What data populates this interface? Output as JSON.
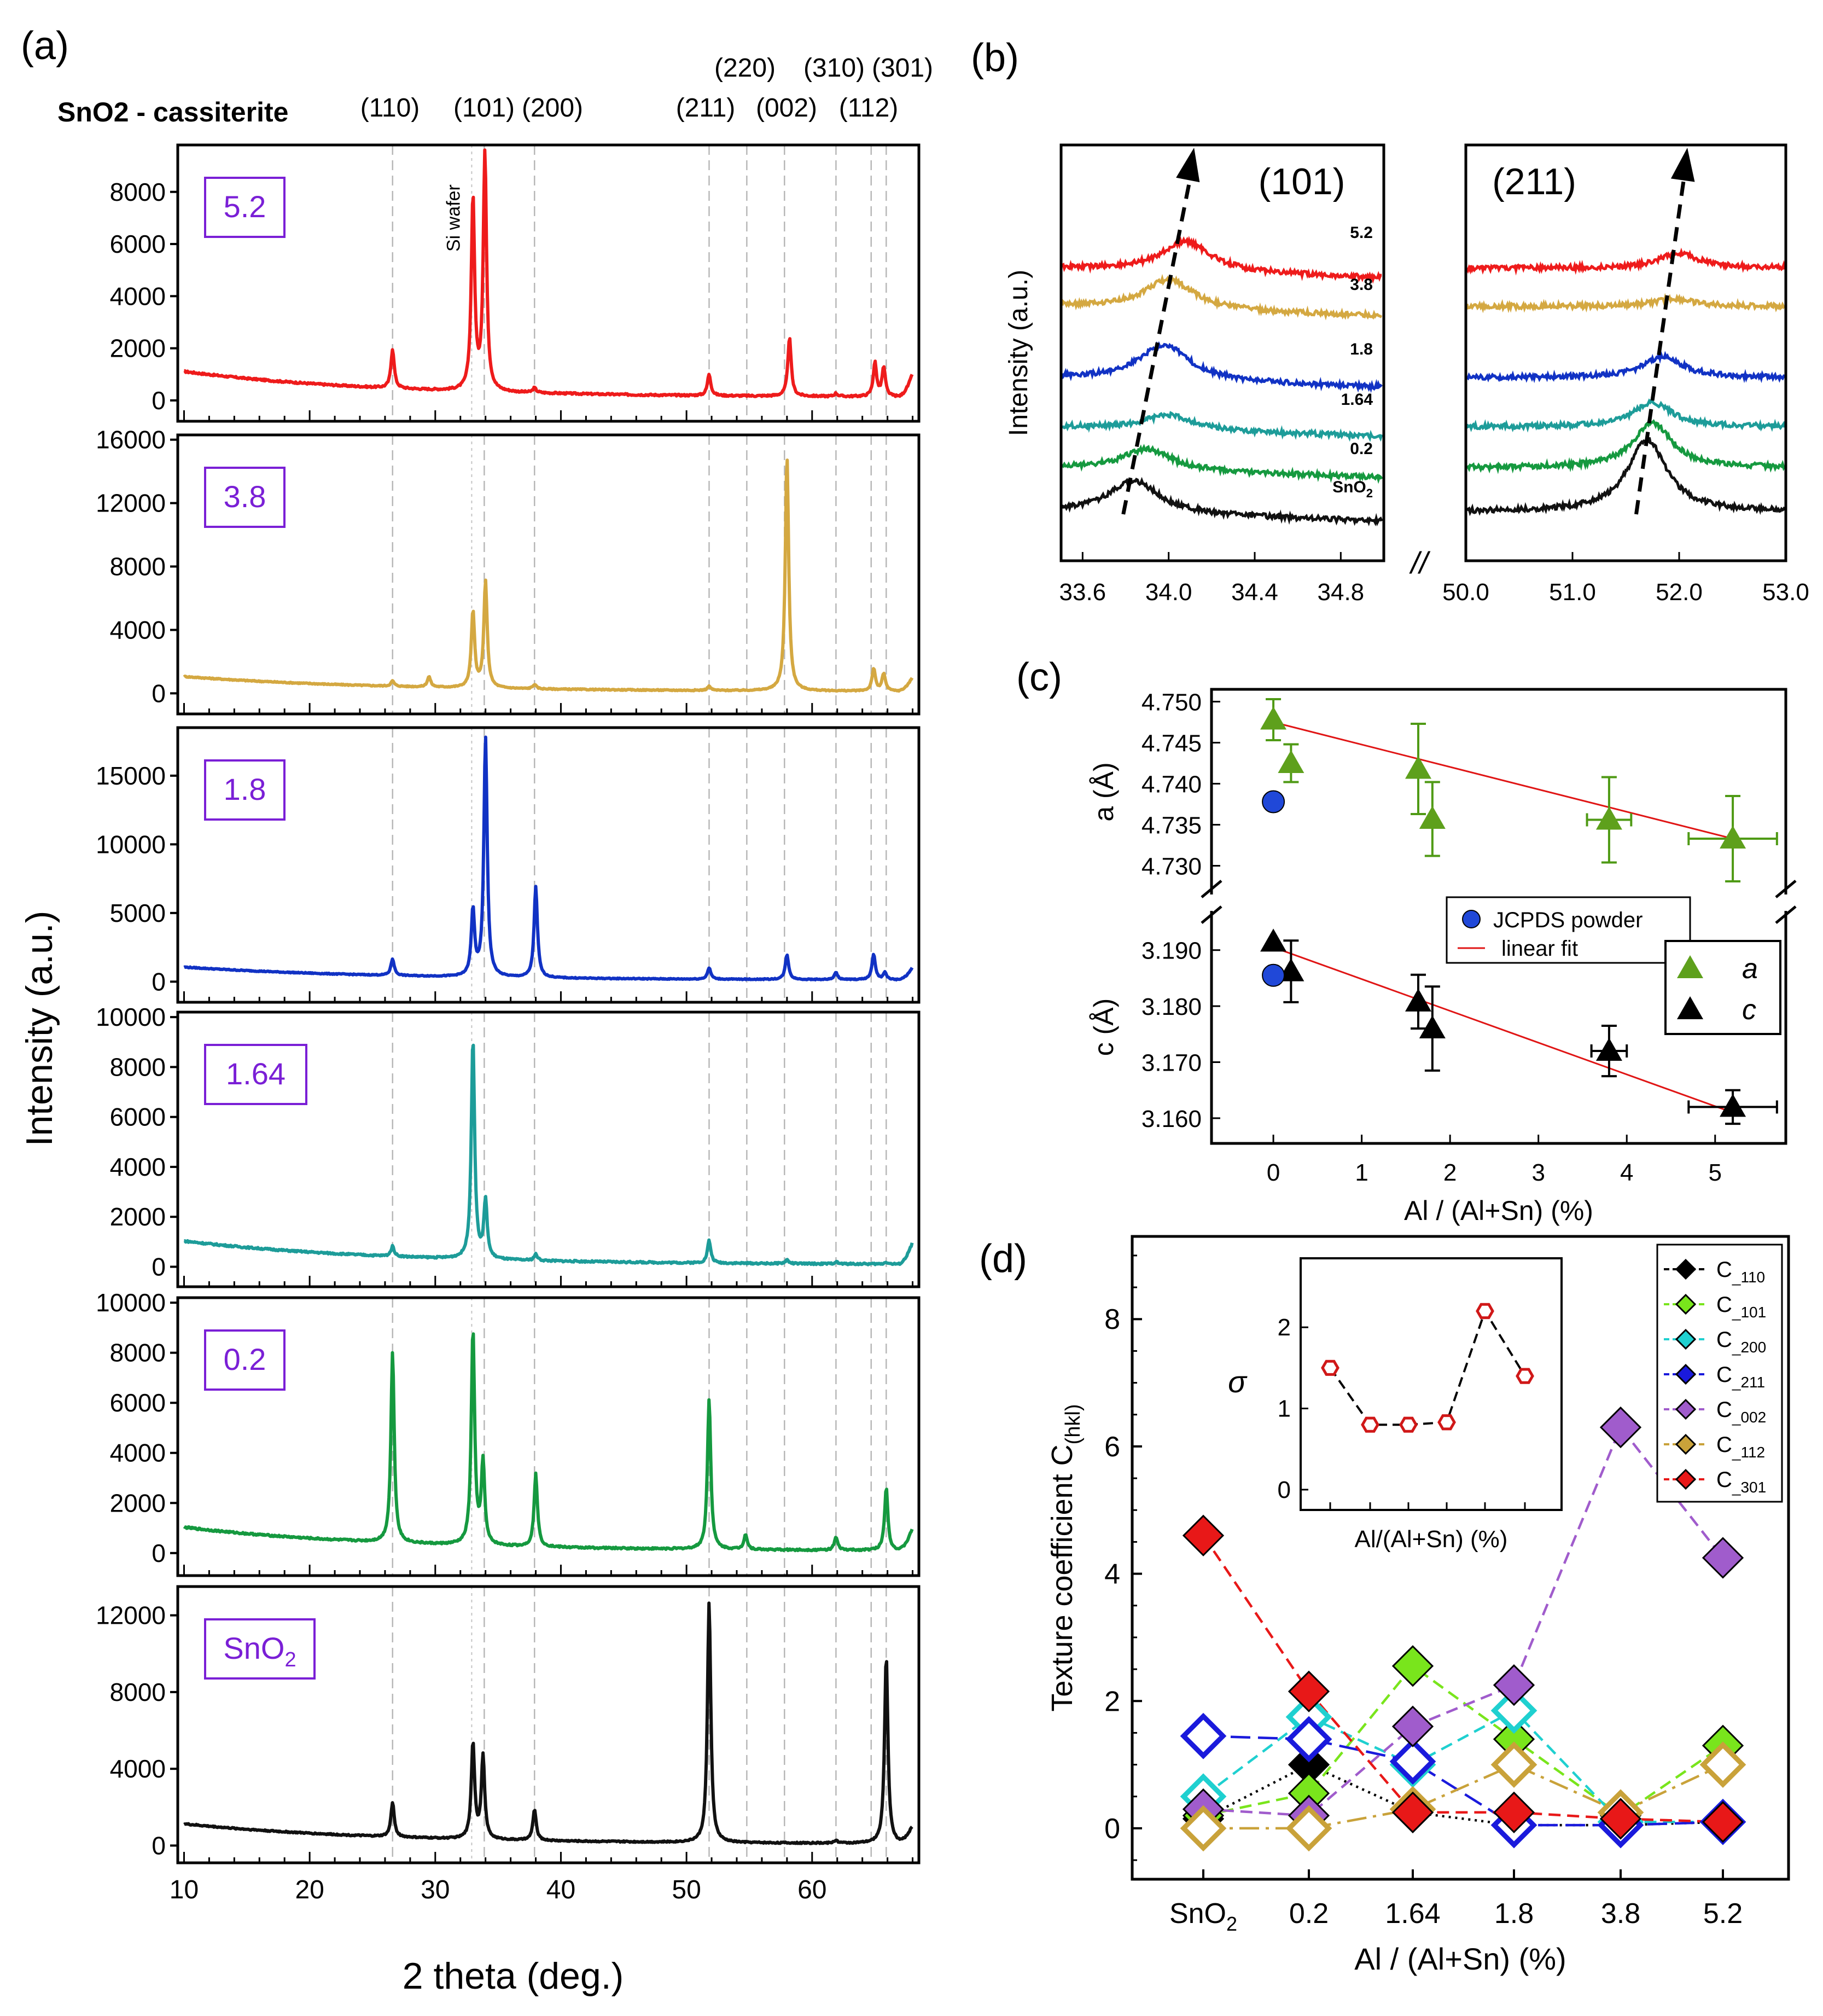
{
  "figure": {
    "panel_labels": [
      "(a)",
      "(b)",
      "(c)",
      "(d)"
    ]
  },
  "colors": {
    "5.2": "#ee1b1b",
    "3.8": "#d4a841",
    "1.8": "#1132c4",
    "1.64": "#1d9c99",
    "0.2": "#15993f",
    "SnO2": "#111111",
    "label": "#7a1fd6"
  },
  "chart_data": [
    {
      "id": "a",
      "type": "line",
      "title": "SnO2 - cassiterite",
      "xlabel": "2 theta  (deg.)",
      "ylabel": "Intensity  (a.u.)",
      "xlim": [
        9.5,
        68.5
      ],
      "xticks": [
        10,
        20,
        30,
        40,
        50,
        60
      ],
      "reflections": [
        {
          "hkl": "(110)",
          "x": 26.6
        },
        {
          "hkl": "(101)",
          "x": 33.9
        },
        {
          "hkl": "(200)",
          "x": 37.9
        },
        {
          "hkl": "(211)",
          "x": 51.8
        },
        {
          "hkl": "(220)",
          "x": 54.8
        },
        {
          "hkl": "(002)",
          "x": 57.8
        },
        {
          "hkl": "(310)",
          "x": 61.9
        },
        {
          "hkl": "(112)",
          "x": 64.7
        },
        {
          "hkl": "(301)",
          "x": 65.9
        }
      ],
      "si_wafer": {
        "label": "Si wafer",
        "x": 32.9
      },
      "series": [
        {
          "name": "5.2",
          "ylim": [
            -800,
            9800
          ],
          "yticks": [
            0,
            2000,
            4000,
            6000,
            8000
          ],
          "baseline": [
            1000,
            110
          ],
          "peaks": [
            [
              26.6,
              1500
            ],
            [
              33.0,
              7400
            ],
            [
              33.95,
              9100
            ],
            [
              37.9,
              180
            ],
            [
              51.8,
              830
            ],
            [
              58.2,
              2250
            ],
            [
              61.9,
              120
            ],
            [
              65.0,
              1300
            ],
            [
              65.7,
              1100
            ]
          ]
        },
        {
          "name": "3.8",
          "ylim": [
            -1300,
            16300
          ],
          "yticks": [
            0,
            4000,
            8000,
            12000,
            16000
          ],
          "baseline": [
            950,
            110
          ],
          "peaks": [
            [
              26.6,
              330
            ],
            [
              29.5,
              650
            ],
            [
              33.0,
              4800
            ],
            [
              34.0,
              6700
            ],
            [
              37.9,
              280
            ],
            [
              51.8,
              260
            ],
            [
              58.0,
              14800
            ],
            [
              64.9,
              1400
            ],
            [
              65.7,
              1100
            ]
          ]
        },
        {
          "name": "1.8",
          "ylim": [
            -1500,
            18500
          ],
          "yticks": [
            0,
            5000,
            10000,
            15000
          ],
          "baseline": [
            950,
            110
          ],
          "peaks": [
            [
              26.6,
              1200
            ],
            [
              33.0,
              4800
            ],
            [
              34.0,
              17400
            ],
            [
              38.0,
              6600
            ],
            [
              51.8,
              820
            ],
            [
              58.0,
              1800
            ],
            [
              61.9,
              500
            ],
            [
              64.9,
              1850
            ],
            [
              65.8,
              500
            ]
          ]
        },
        {
          "name": "1.64",
          "ylim": [
            -800,
            10200
          ],
          "yticks": [
            0,
            2000,
            4000,
            6000,
            8000,
            10000
          ],
          "baseline": [
            950,
            80
          ],
          "peaks": [
            [
              26.6,
              400
            ],
            [
              33.0,
              8800
            ],
            [
              34.0,
              2300
            ],
            [
              38.0,
              250
            ],
            [
              51.8,
              900
            ],
            [
              58.0,
              150
            ],
            [
              61.9,
              80
            ],
            [
              65.9,
              80
            ]
          ]
        },
        {
          "name": "0.2",
          "ylim": [
            -900,
            10200
          ],
          "yticks": [
            0,
            2000,
            4000,
            6000,
            8000,
            10000
          ],
          "baseline": [
            950,
            80
          ],
          "peaks": [
            [
              26.6,
              7600
            ],
            [
              33.0,
              8600
            ],
            [
              33.8,
              3300
            ],
            [
              38.0,
              2900
            ],
            [
              51.8,
              6000
            ],
            [
              54.7,
              600
            ],
            [
              61.9,
              500
            ],
            [
              65.9,
              2500
            ]
          ]
        },
        {
          "name": "SnO2",
          "ylim": [
            -900,
            13500
          ],
          "yticks": [
            0,
            4000,
            8000,
            12000
          ],
          "baseline": [
            1050,
            80
          ],
          "peaks": [
            [
              26.6,
              1800
            ],
            [
              33.0,
              5000
            ],
            [
              33.8,
              4300
            ],
            [
              37.9,
              1600
            ],
            [
              51.8,
              12500
            ],
            [
              61.9,
              150
            ],
            [
              65.9,
              9800
            ]
          ]
        }
      ]
    },
    {
      "id": "b",
      "type": "line",
      "ylabel": "Intensity (a.u.)",
      "left": {
        "peak_label": "(101)",
        "xlim": [
          33.5,
          35.0
        ],
        "xticks": [
          "33.6",
          "34.0",
          "34.4",
          "34.8"
        ]
      },
      "right": {
        "peak_label": "(211)",
        "xlim": [
          50.0,
          53.0
        ],
        "xticks": [
          "50.0",
          "51.0",
          "52.0",
          "53.0"
        ]
      },
      "break_mark": "//",
      "series": [
        {
          "name": "5.2",
          "offset": 5,
          "p101": [
            34.08,
            1.0
          ],
          "p211": [
            52.0,
            0.5
          ]
        },
        {
          "name": "3.8",
          "offset": 4,
          "p101": [
            34.0,
            1.0
          ],
          "p211": [
            51.95,
            0.25
          ]
        },
        {
          "name": "1.8",
          "offset": 3,
          "p101": [
            33.98,
            1.2
          ],
          "p211": [
            51.85,
            0.7
          ]
        },
        {
          "name": "1.64",
          "offset": 2,
          "p101": [
            34.0,
            0.5
          ],
          "p211": [
            51.75,
            0.8
          ]
        },
        {
          "name": "0.2",
          "offset": 1,
          "p101": [
            33.9,
            0.7
          ],
          "p211": [
            51.75,
            1.5
          ]
        },
        {
          "name": "SnO2",
          "offset": 0,
          "p101": [
            33.84,
            1.1
          ],
          "p211": [
            51.7,
            2.4
          ]
        }
      ]
    },
    {
      "id": "c",
      "type": "scatter",
      "xlabel": "Al / (Al+Sn)  (%)",
      "xlim": [
        -0.7,
        5.8
      ],
      "xticks": [
        0,
        1,
        2,
        3,
        4,
        5
      ],
      "top": {
        "ylabel": "a (Å)",
        "ylim": [
          4.7265,
          4.7515
        ],
        "yticks": [
          "4.730",
          "4.735",
          "4.740",
          "4.745",
          "4.750"
        ]
      },
      "bottom": {
        "ylabel": "c (Å)",
        "ylim": [
          3.1555,
          3.197
        ],
        "yticks": [
          "3.160",
          "3.170",
          "3.180",
          "3.190"
        ]
      },
      "a": [
        {
          "x": 0.0,
          "y": 4.7478,
          "yerr": 0.0025
        },
        {
          "x": 0.2,
          "y": 4.7425,
          "yerr": 0.0023
        },
        {
          "x": 1.64,
          "y": 4.7418,
          "yerr": 0.0055
        },
        {
          "x": 1.8,
          "y": 4.7357,
          "yerr": 0.0045
        },
        {
          "x": 3.8,
          "y": 4.7356,
          "yerr": 0.0052,
          "xerr": 0.25
        },
        {
          "x": 5.2,
          "y": 4.7333,
          "yerr": 0.0052,
          "xerr": 0.5
        }
      ],
      "c": [
        {
          "x": 0.0,
          "y": 3.1915,
          "yerr": 0.0
        },
        {
          "x": 0.2,
          "y": 3.1862,
          "yerr": 0.0055
        },
        {
          "x": 1.64,
          "y": 3.1808,
          "yerr": 0.0048
        },
        {
          "x": 1.8,
          "y": 3.176,
          "yerr": 0.0075
        },
        {
          "x": 3.8,
          "y": 3.172,
          "yerr": 0.0045,
          "xerr": 0.2
        },
        {
          "x": 5.2,
          "y": 3.162,
          "yerr": 0.003,
          "xerr": 0.5
        }
      ],
      "jcpds": {
        "a": 4.7378,
        "c": 3.1855
      },
      "fit_a": [
        [
          0,
          4.7475
        ],
        [
          5.2,
          4.7333
        ]
      ],
      "fit_c": [
        [
          0,
          3.1905
        ],
        [
          5.2,
          3.161
        ]
      ],
      "legend1": [
        "JCPDS powder",
        "linear fit"
      ],
      "legend2": [
        "a",
        "c"
      ]
    },
    {
      "id": "d",
      "type": "line",
      "ylabel": "Texture coefficient  C(hkl)",
      "xlabel": "Al / (Al+Sn)  (%)",
      "categories": [
        "SnO2",
        "0.2",
        "1.64",
        "1.8",
        "3.8",
        "5.2"
      ],
      "ylim": [
        -0.8,
        9.3
      ],
      "yticks": [
        0,
        2,
        4,
        6,
        8
      ],
      "series": [
        {
          "name": "C_110",
          "color": "#000000",
          "dash": "4,8",
          "filled": true,
          "values": [
            0.15,
            1.0,
            0.25,
            0.05,
            0.05,
            0.1
          ]
        },
        {
          "name": "C_101",
          "color": "#79e51c",
          "dash": "22,12",
          "filled": true,
          "values": [
            0.2,
            0.55,
            2.55,
            1.4,
            0.2,
            1.3
          ]
        },
        {
          "name": "C_200",
          "color": "#1fd0d0",
          "dash": "22,12",
          "filled": false,
          "values": [
            0.5,
            1.75,
            1.0,
            1.85,
            0.1,
            0.1
          ]
        },
        {
          "name": "C_211",
          "color": "#1a1adc",
          "dash": "36,14",
          "filled": false,
          "values": [
            1.45,
            1.4,
            1.05,
            0.05,
            0.05,
            0.1
          ]
        },
        {
          "name": "C_002",
          "color": "#a05ccc",
          "dash": "22,12",
          "filled": true,
          "values": [
            0.3,
            0.2,
            1.6,
            2.25,
            6.3,
            4.25
          ]
        },
        {
          "name": "C_112",
          "color": "#c9a23a",
          "dash": "36,12,6,12",
          "filled": false,
          "values": [
            0.0,
            0.0,
            0.3,
            1.0,
            0.25,
            1.0
          ]
        },
        {
          "name": "C_301",
          "color": "#e81818",
          "dash": "22,12",
          "filled": true,
          "values": [
            4.6,
            2.15,
            0.25,
            0.25,
            0.15,
            0.1
          ]
        }
      ],
      "inset": {
        "ylabel": "σ",
        "xlabel": "Al/(Al+Sn) (%)",
        "ylim": [
          -0.25,
          2.85
        ],
        "yticks": [
          0,
          1,
          2
        ],
        "values": [
          1.5,
          0.8,
          0.8,
          0.83,
          2.2,
          1.4
        ]
      }
    }
  ]
}
